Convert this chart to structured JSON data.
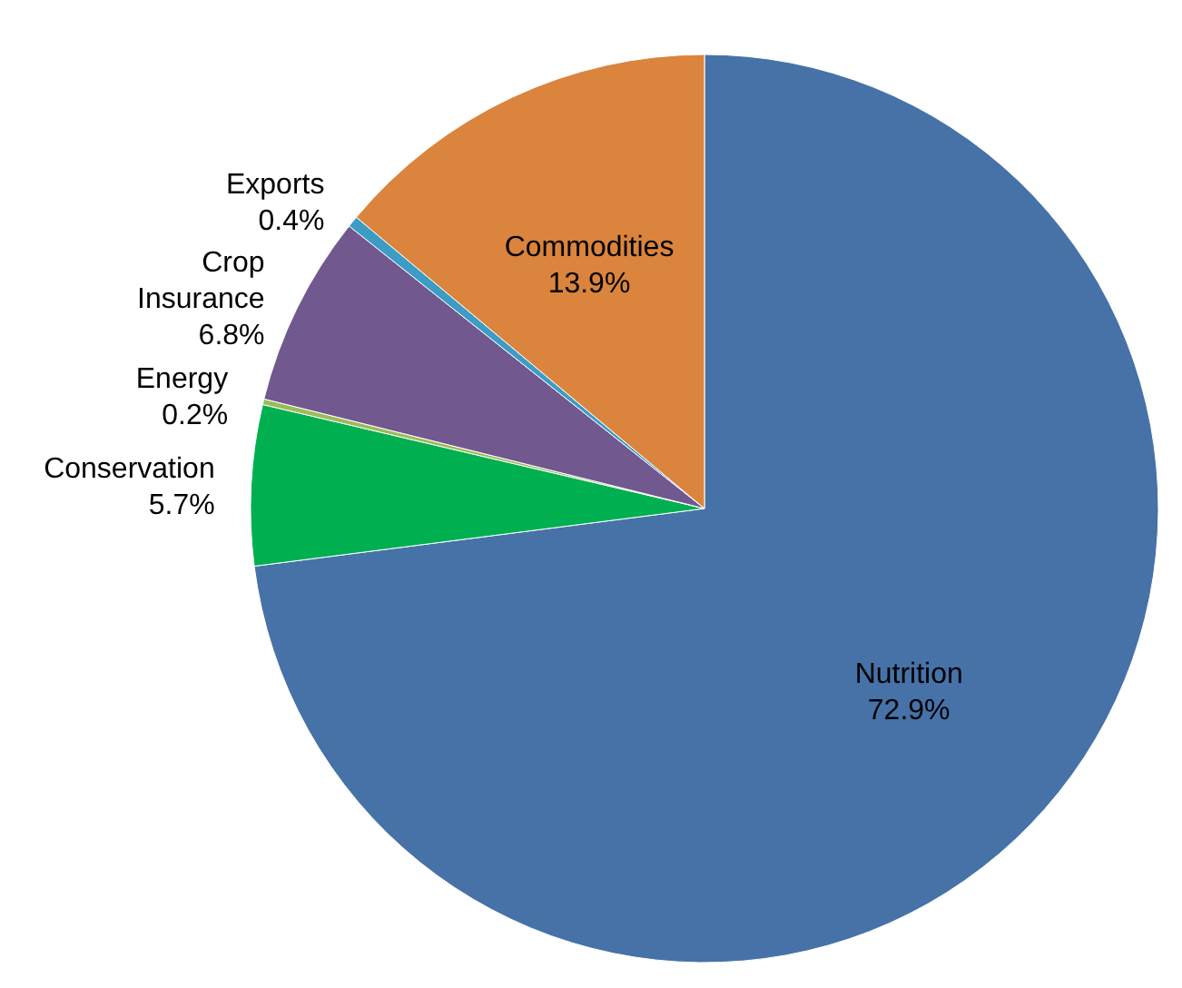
{
  "chart_data": {
    "type": "pie",
    "categories": [
      "Nutrition",
      "Conservation",
      "Energy",
      "Crop Insurance",
      "Exports",
      "Commodities"
    ],
    "values": [
      72.9,
      5.7,
      0.2,
      6.8,
      0.4,
      13.9
    ],
    "colors": [
      "#4672a8",
      "#00b050",
      "#9bbb59",
      "#71588f",
      "#3c9cc4",
      "#db843d"
    ],
    "value_labels": [
      "72.9%",
      "5.7%",
      "0.2%",
      "6.8%",
      "0.4%",
      "13.9%"
    ]
  }
}
